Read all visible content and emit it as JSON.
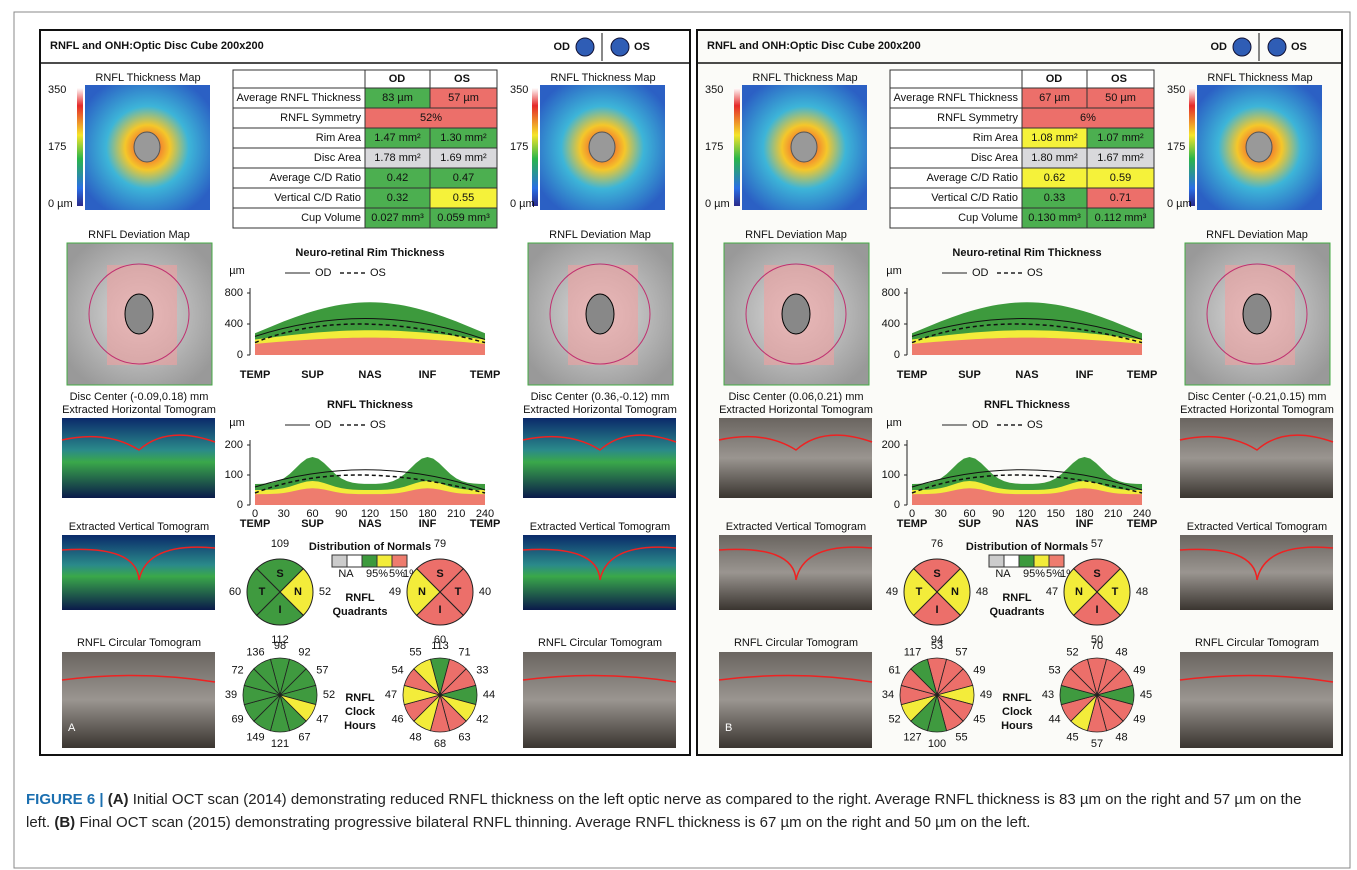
{
  "panels": [
    {
      "letter": "A",
      "title": "RNFL and ONH:Optic Disc Cube 200x200",
      "od": "OD",
      "os": "OS",
      "map_label": "RNFL Thickness Map",
      "map_scale": [
        "350",
        "175",
        "0 µm"
      ],
      "table": {
        "head": [
          "OD",
          "OS"
        ],
        "rows": [
          {
            "label": "Average RNFL Thickness",
            "od": "83 µm",
            "os": "57 µm",
            "od_color": "#4caf50",
            "os_color": "#ec6f6a"
          },
          {
            "label": "RNFL Symmetry",
            "both": "52%",
            "color": "#ec6f6a"
          },
          {
            "label": "Rim Area",
            "od": "1.47 mm²",
            "os": "1.30 mm²",
            "od_color": "#4caf50",
            "os_color": "#4caf50"
          },
          {
            "label": "Disc Area",
            "od": "1.78 mm²",
            "os": "1.69 mm²",
            "od_color": "#d9d9dc",
            "os_color": "#d9d9dc"
          },
          {
            "label": "Average C/D Ratio",
            "od": "0.42",
            "os": "0.47",
            "od_color": "#4caf50",
            "os_color": "#4caf50"
          },
          {
            "label": "Vertical C/D Ratio",
            "od": "0.32",
            "os": "0.55",
            "od_color": "#4caf50",
            "os_color": "#f5f23a"
          },
          {
            "label": "Cup Volume",
            "od": "0.027 mm³",
            "os": "0.059 mm³",
            "od_color": "#4caf50",
            "os_color": "#4caf50"
          }
        ]
      },
      "deviation_label": "RNFL Deviation Map",
      "disc_center_od": "Disc Center  (-0.09,0.18) mm",
      "disc_center_os": "Disc Center  (0.36,-0.12) mm",
      "horizontal_label": "Extracted Horizontal Tomogram",
      "vertical_label": "Extracted Vertical Tomogram",
      "circular_label": "RNFL Circular Tomogram",
      "rim_chart": {
        "title": "Neuro-retinal Rim Thickness",
        "unit": "µm",
        "legend": [
          "OD",
          "OS"
        ],
        "yticks": [
          800,
          400,
          0
        ],
        "xticks": [
          "TEMP",
          "SUP",
          "NAS",
          "INF",
          "TEMP"
        ]
      },
      "rnfl_chart": {
        "title": "RNFL Thickness",
        "unit": "µm",
        "legend": [
          "OD",
          "OS"
        ],
        "yticks": [
          200,
          100,
          0
        ],
        "xnums": [
          0,
          30,
          60,
          90,
          120,
          150,
          180,
          210,
          240
        ],
        "xticks": [
          "TEMP",
          "SUP",
          "NAS",
          "INF",
          "TEMP"
        ]
      },
      "normals": {
        "title": "Distribution of Normals",
        "labels": [
          "NA",
          "95%",
          "5%",
          "1%"
        ]
      },
      "quadrant_label": "RNFL\nQuadrants",
      "clock_label": "RNFL\nClock\nHours",
      "quadrants_od": [
        {
          "letter": "S",
          "value": 109,
          "color": "#3f9a3f"
        },
        {
          "letter": "N",
          "value": 52,
          "color": "#f3ec3a"
        },
        {
          "letter": "I",
          "value": 112,
          "color": "#3f9a3f"
        },
        {
          "letter": "T",
          "value": 60,
          "color": "#3f9a3f"
        }
      ],
      "quadrants_os": [
        {
          "letter": "S",
          "value": 79,
          "color": "#ec6f6a"
        },
        {
          "letter": "T",
          "value": 40,
          "color": "#ec6f6a"
        },
        {
          "letter": "I",
          "value": 60,
          "color": "#ec6f6a"
        },
        {
          "letter": "N",
          "value": 49,
          "color": "#f3ec3a"
        }
      ],
      "clock_od": {
        "values": [
          98,
          92,
          57,
          52,
          47,
          67,
          121,
          149,
          69,
          39,
          72,
          136
        ],
        "colors": [
          "#3f9a3f",
          "#3f9a3f",
          "#3f9a3f",
          "#3f9a3f",
          "#f3ec3a",
          "#3f9a3f",
          "#3f9a3f",
          "#3f9a3f",
          "#3f9a3f",
          "#3f9a3f",
          "#3f9a3f",
          "#3f9a3f"
        ]
      },
      "clock_os": {
        "values": [
          113,
          71,
          33,
          44,
          42,
          63,
          68,
          48,
          46,
          47,
          54,
          55
        ],
        "colors": [
          "#3f9a3f",
          "#ec6f6a",
          "#ec6f6a",
          "#3f9a3f",
          "#f3ec3a",
          "#ec6f6a",
          "#ec6f6a",
          "#f3ec3a",
          "#ec6f6a",
          "#f3ec3a",
          "#ec6f6a",
          "#f3ec3a"
        ]
      }
    },
    {
      "letter": "B",
      "title": "RNFL and ONH:Optic Disc Cube 200x200",
      "od": "OD",
      "os": "OS",
      "map_label": "RNFL Thickness Map",
      "map_scale": [
        "350",
        "175",
        "0 µm"
      ],
      "table": {
        "head": [
          "OD",
          "OS"
        ],
        "rows": [
          {
            "label": "Average RNFL Thickness",
            "od": "67 µm",
            "os": "50 µm",
            "od_color": "#ec6f6a",
            "os_color": "#ec6f6a"
          },
          {
            "label": "RNFL Symmetry",
            "both": "6%",
            "color": "#ec6f6a"
          },
          {
            "label": "Rim Area",
            "od": "1.08 mm²",
            "os": "1.07 mm²",
            "od_color": "#f5f23a",
            "os_color": "#4caf50"
          },
          {
            "label": "Disc Area",
            "od": "1.80 mm²",
            "os": "1.67 mm²",
            "od_color": "#d9d9dc",
            "os_color": "#d9d9dc"
          },
          {
            "label": "Average C/D Ratio",
            "od": "0.62",
            "os": "0.59",
            "od_color": "#f5f23a",
            "os_color": "#f5f23a"
          },
          {
            "label": "Vertical C/D Ratio",
            "od": "0.33",
            "os": "0.71",
            "od_color": "#4caf50",
            "os_color": "#ec6f6a"
          },
          {
            "label": "Cup Volume",
            "od": "0.130 mm³",
            "os": "0.112 mm³",
            "od_color": "#4caf50",
            "os_color": "#4caf50"
          }
        ]
      },
      "deviation_label": "RNFL Deviation Map",
      "disc_center_od": "Disc Center  (0.06,0.21) mm",
      "disc_center_os": "Disc Center  (-0.21,0.15) mm",
      "horizontal_label": "Extracted Horizontal Tomogram",
      "vertical_label": "Extracted Vertical Tomogram",
      "circular_label": "RNFL Circular Tomogram",
      "rim_chart": {
        "title": "Neuro-retinal Rim Thickness",
        "unit": "µm",
        "legend": [
          "OD",
          "OS"
        ],
        "yticks": [
          800,
          400,
          0
        ],
        "xticks": [
          "TEMP",
          "SUP",
          "NAS",
          "INF",
          "TEMP"
        ]
      },
      "rnfl_chart": {
        "title": "RNFL Thickness",
        "unit": "µm",
        "legend": [
          "OD",
          "OS"
        ],
        "yticks": [
          200,
          100,
          0
        ],
        "xnums": [
          0,
          30,
          60,
          90,
          120,
          150,
          180,
          210,
          240
        ],
        "xticks": [
          "TEMP",
          "SUP",
          "NAS",
          "INF",
          "TEMP"
        ]
      },
      "normals": {
        "title": "Distribution of Normals",
        "labels": [
          "NA",
          "95%",
          "5%",
          "1%"
        ]
      },
      "quadrant_label": "RNFL\nQuadrants",
      "clock_label": "RNFL\nClock\nHours",
      "quadrants_od": [
        {
          "letter": "S",
          "value": 76,
          "color": "#ec6f6a"
        },
        {
          "letter": "N",
          "value": 48,
          "color": "#f3ec3a"
        },
        {
          "letter": "I",
          "value": 94,
          "color": "#ec6f6a"
        },
        {
          "letter": "T",
          "value": 49,
          "color": "#f3ec3a"
        }
      ],
      "quadrants_os": [
        {
          "letter": "S",
          "value": 57,
          "color": "#ec6f6a"
        },
        {
          "letter": "T",
          "value": 48,
          "color": "#f3ec3a"
        },
        {
          "letter": "I",
          "value": 50,
          "color": "#ec6f6a"
        },
        {
          "letter": "N",
          "value": 47,
          "color": "#f3ec3a"
        }
      ],
      "clock_od": {
        "values": [
          53,
          57,
          49,
          49,
          45,
          55,
          100,
          127,
          52,
          34,
          61,
          117
        ],
        "colors": [
          "#ec6f6a",
          "#ec6f6a",
          "#ec6f6a",
          "#f3ec3a",
          "#ec6f6a",
          "#ec6f6a",
          "#3f9a3f",
          "#3f9a3f",
          "#f3ec3a",
          "#ec6f6a",
          "#ec6f6a",
          "#3f9a3f"
        ]
      },
      "clock_os": {
        "values": [
          70,
          48,
          49,
          45,
          49,
          48,
          57,
          45,
          44,
          43,
          53,
          52
        ],
        "colors": [
          "#ec6f6a",
          "#ec6f6a",
          "#ec6f6a",
          "#3f9a3f",
          "#ec6f6a",
          "#ec6f6a",
          "#ec6f6a",
          "#f3ec3a",
          "#ec6f6a",
          "#3f9a3f",
          "#ec6f6a",
          "#ec6f6a"
        ]
      }
    }
  ],
  "caption": {
    "label": "FIGURE 6 |",
    "a_tag": "(A)",
    "a_text": " Initial OCT scan (2014) demonstrating reduced RNFL thickness on the left optic nerve as compared to the right. Average RNFL thickness is 83 µm on the right and 57 µm on the left. ",
    "b_tag": "(B)",
    "b_text": " Final OCT scan (2015) demonstrating progressive bilateral RNFL thinning. Average RNFL thickness is 67 µm on the right and 50 µm on the left."
  }
}
